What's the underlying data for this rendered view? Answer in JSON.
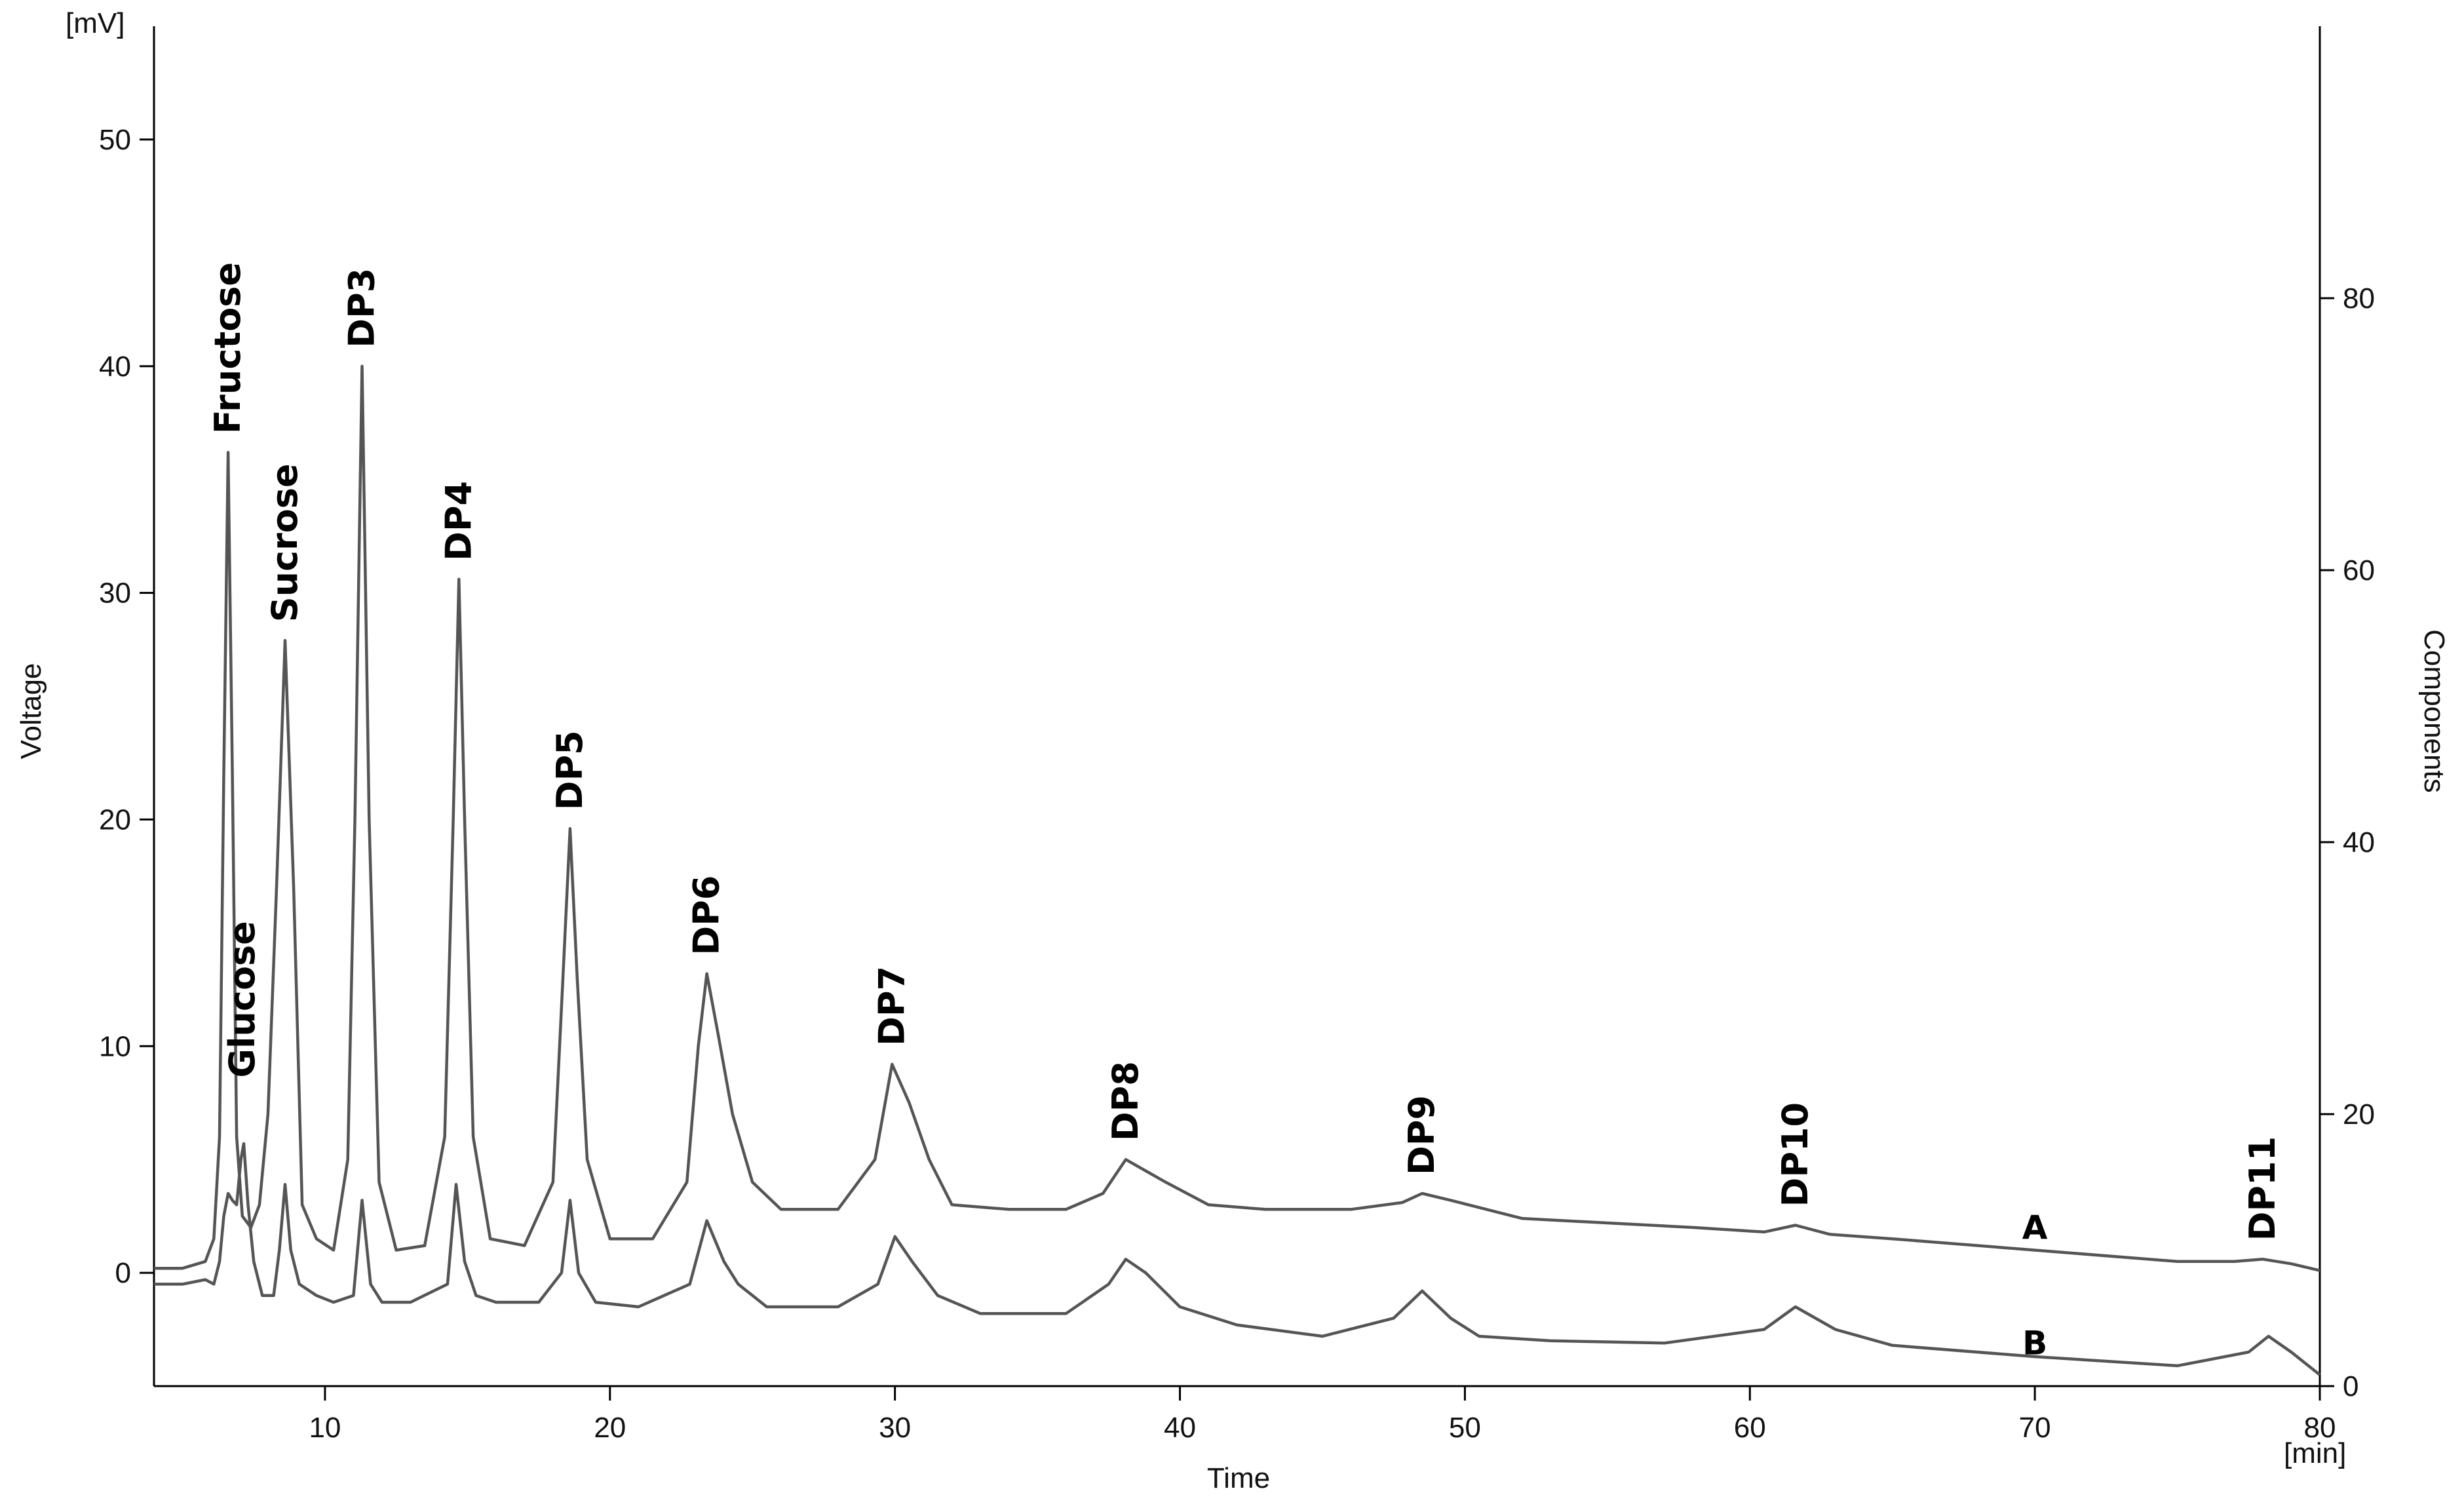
{
  "chart_data": {
    "type": "line",
    "title": "",
    "xlabel": "Time",
    "x_unit": "[min]",
    "ylabel": "Voltage",
    "y_unit": "[mV]",
    "y2label": "Components",
    "xlim": [
      4,
      80
    ],
    "ylim": [
      -5,
      55
    ],
    "y2lim": [
      0,
      100
    ],
    "xticks": [
      10,
      20,
      30,
      40,
      50,
      60,
      70,
      80
    ],
    "yticks": [
      0,
      10,
      20,
      30,
      40,
      50
    ],
    "y2ticks": [
      0,
      20,
      40,
      60,
      80
    ],
    "grid": false,
    "peak_labels": [
      {
        "text": "Fructose",
        "x": 6.6,
        "y": 36.2
      },
      {
        "text": "Glucose",
        "x": 7.1,
        "y": 7.8
      },
      {
        "text": "Sucrose",
        "x": 8.6,
        "y": 27.9
      },
      {
        "text": "DP3",
        "x": 11.3,
        "y": 40.0
      },
      {
        "text": "DP4",
        "x": 14.7,
        "y": 30.6
      },
      {
        "text": "DP5",
        "x": 18.6,
        "y": 19.6
      },
      {
        "text": "DP6",
        "x": 23.4,
        "y": 13.2
      },
      {
        "text": "DP7",
        "x": 29.9,
        "y": 9.2
      },
      {
        "text": "DP8",
        "x": 38.1,
        "y": 5.0
      },
      {
        "text": "DP9",
        "x": 48.5,
        "y": 3.5
      },
      {
        "text": "DP10",
        "x": 61.6,
        "y": 2.1
      },
      {
        "text": "DP11",
        "x": 78.0,
        "y": 0.6
      }
    ],
    "series": [
      {
        "name": "A",
        "label_pos": [
          70,
          1.5
        ],
        "x": [
          4,
          5,
          5.8,
          6.1,
          6.3,
          6.45,
          6.6,
          6.75,
          6.9,
          7.1,
          7.4,
          7.7,
          8.0,
          8.3,
          8.6,
          8.9,
          9.2,
          9.7,
          10.3,
          10.8,
          11.05,
          11.3,
          11.55,
          11.9,
          12.5,
          13.5,
          14.2,
          14.5,
          14.7,
          14.9,
          15.2,
          15.8,
          17.0,
          18.0,
          18.35,
          18.6,
          18.85,
          19.2,
          20.0,
          21.5,
          22.7,
          23.1,
          23.4,
          23.8,
          24.3,
          25.0,
          26.0,
          28.0,
          29.3,
          29.9,
          30.5,
          31.2,
          32.0,
          34.0,
          36.0,
          37.3,
          38.1,
          38.8,
          39.5,
          41.0,
          43.0,
          46.0,
          47.8,
          48.5,
          49.5,
          52.0,
          55.0,
          58.0,
          60.5,
          61.6,
          62.8,
          65.0,
          70.0,
          75.0,
          77.0,
          78.0,
          79.0,
          80.0
        ],
        "y": [
          0.2,
          0.2,
          0.5,
          1.5,
          6.0,
          22.0,
          36.2,
          22.0,
          6.0,
          2.5,
          2.0,
          3.0,
          7.0,
          17.0,
          27.9,
          17.0,
          3.0,
          1.5,
          1.0,
          5.0,
          20.0,
          40.0,
          20.0,
          4.0,
          1.0,
          1.2,
          6.0,
          20.0,
          30.6,
          20.0,
          6.0,
          1.5,
          1.2,
          4.0,
          13.0,
          19.6,
          13.0,
          5.0,
          1.5,
          1.5,
          4.0,
          10.0,
          13.2,
          10.5,
          7.0,
          4.0,
          2.8,
          2.8,
          5.0,
          9.2,
          7.5,
          5.0,
          3.0,
          2.8,
          2.8,
          3.5,
          5.0,
          4.5,
          4.0,
          3.0,
          2.8,
          2.8,
          3.1,
          3.5,
          3.2,
          2.4,
          2.2,
          2.0,
          1.8,
          2.1,
          1.7,
          1.5,
          1.0,
          0.5,
          0.5,
          0.6,
          0.4,
          0.1
        ]
      },
      {
        "name": "B",
        "label_pos": [
          70,
          -3.6
        ],
        "x": [
          4,
          5,
          5.8,
          6.1,
          6.3,
          6.45,
          6.6,
          6.75,
          6.9,
          7.05,
          7.15,
          7.3,
          7.5,
          7.8,
          8.2,
          8.4,
          8.6,
          8.8,
          9.1,
          9.7,
          10.3,
          11.0,
          11.3,
          11.6,
          12.0,
          13.0,
          14.3,
          14.6,
          14.9,
          15.3,
          16.0,
          17.5,
          18.3,
          18.6,
          18.9,
          19.5,
          21.0,
          22.8,
          23.4,
          24.0,
          24.5,
          25.5,
          28.0,
          29.4,
          30.0,
          30.6,
          31.5,
          33.0,
          36.0,
          37.5,
          38.1,
          38.8,
          40.0,
          42.0,
          45.0,
          47.5,
          48.5,
          49.5,
          50.5,
          53.0,
          57.0,
          60.5,
          61.6,
          63.0,
          65.0,
          70.0,
          75.0,
          77.5,
          78.2,
          79.0,
          80.0
        ],
        "y": [
          -0.5,
          -0.5,
          -0.3,
          -0.5,
          0.5,
          2.5,
          3.5,
          3.2,
          3.0,
          5.0,
          5.7,
          3.0,
          0.5,
          -1.0,
          -1.0,
          1.0,
          3.9,
          1.0,
          -0.5,
          -1.0,
          -1.3,
          -1.0,
          3.2,
          -0.5,
          -1.3,
          -1.3,
          -0.5,
          3.9,
          0.5,
          -1.0,
          -1.3,
          -1.3,
          0.0,
          3.2,
          0.0,
          -1.3,
          -1.5,
          -0.5,
          2.3,
          0.5,
          -0.5,
          -1.5,
          -1.5,
          -0.5,
          1.6,
          0.5,
          -1.0,
          -1.8,
          -1.8,
          -0.5,
          0.6,
          0.0,
          -1.5,
          -2.3,
          -2.8,
          -2.0,
          -0.8,
          -2.0,
          -2.8,
          -3.0,
          -3.1,
          -2.5,
          -1.5,
          -2.5,
          -3.2,
          -3.7,
          -4.1,
          -3.5,
          -2.8,
          -3.5,
          -4.5
        ]
      }
    ]
  }
}
